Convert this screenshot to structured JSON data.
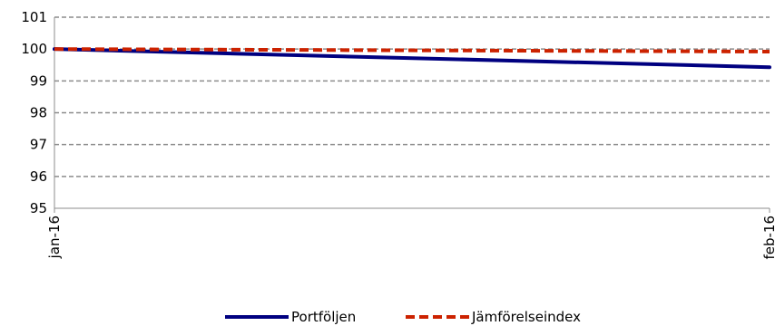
{
  "chart_data": {
    "type": "line",
    "x": [
      "jan-16",
      "feb-16"
    ],
    "ylim": [
      95,
      101
    ],
    "yticks": [
      95,
      96,
      97,
      98,
      99,
      100,
      101
    ],
    "grid": true,
    "legend_position": "bottom",
    "series": [
      {
        "name": "Portföljen",
        "values": [
          100,
          99.43
        ],
        "color": "#000080",
        "style": "solid"
      },
      {
        "name": "Jämförelseindex",
        "values": [
          100,
          99.92
        ],
        "color": "#cc2200",
        "style": "dashed"
      }
    ]
  }
}
